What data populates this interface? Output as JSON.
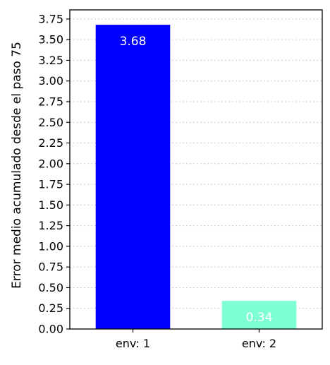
{
  "chart_data": {
    "type": "bar",
    "title": "",
    "xlabel": "",
    "ylabel": "Error medio acumulado desde el paso 75",
    "categories": [
      "env: 1",
      "env: 2"
    ],
    "values": [
      3.68,
      0.34
    ],
    "value_labels": [
      "3.68",
      "0.34"
    ],
    "bar_colors": [
      "#0000ff",
      "#7fffd4"
    ],
    "value_label_color": "#ffffff",
    "ylim": [
      0,
      3.86
    ],
    "yticks": [
      0.0,
      0.25,
      0.5,
      0.75,
      1.0,
      1.25,
      1.5,
      1.75,
      2.0,
      2.25,
      2.5,
      2.75,
      3.0,
      3.25,
      3.5,
      3.75
    ],
    "ytick_labels": [
      "0.00",
      "0.25",
      "0.50",
      "0.75",
      "1.00",
      "1.25",
      "1.50",
      "1.75",
      "2.00",
      "2.25",
      "2.50",
      "2.75",
      "3.00",
      "3.25",
      "3.50",
      "3.75"
    ],
    "grid": {
      "y": true,
      "x": false,
      "style": "dotted",
      "color": "#cccccc"
    },
    "legend": "none"
  }
}
